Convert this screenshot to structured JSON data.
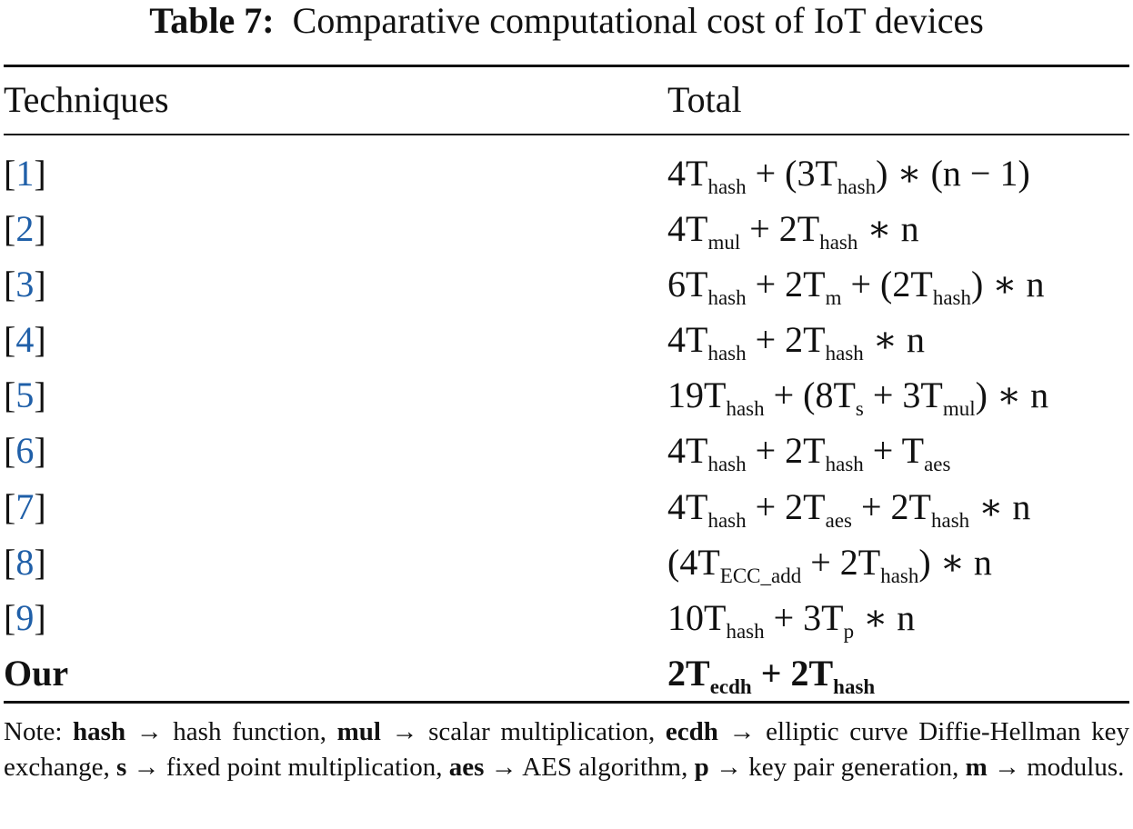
{
  "caption": {
    "label": "Table 7:",
    "text": "Comparative computational cost of IoT devices"
  },
  "table": {
    "headers": {
      "techniques": "Techniques",
      "total": "Total"
    },
    "rows": [
      {
        "technique": "[1]",
        "cite": "1",
        "formula": [
          [
            "4T",
            ""
          ],
          [
            "hash",
            "sub"
          ],
          [
            " + (3T",
            ""
          ],
          [
            "hash",
            "sub"
          ],
          [
            ") ∗ (n − 1)",
            ""
          ]
        ]
      },
      {
        "technique": "[2]",
        "cite": "2",
        "formula": [
          [
            "4T",
            ""
          ],
          [
            "mul",
            "sub"
          ],
          [
            " + 2T",
            ""
          ],
          [
            "hash",
            "sub"
          ],
          [
            " ∗ n",
            ""
          ]
        ]
      },
      {
        "technique": "[3]",
        "cite": "3",
        "formula": [
          [
            "6T",
            ""
          ],
          [
            "hash",
            "sub"
          ],
          [
            " + 2T",
            ""
          ],
          [
            "m",
            "sub"
          ],
          [
            " + (2T",
            ""
          ],
          [
            "hash",
            "sub"
          ],
          [
            ") ∗ n",
            ""
          ]
        ]
      },
      {
        "technique": "[4]",
        "cite": "4",
        "formula": [
          [
            "4T",
            ""
          ],
          [
            "hash",
            "sub"
          ],
          [
            " + 2T",
            ""
          ],
          [
            "hash",
            "sub"
          ],
          [
            " ∗ n",
            ""
          ]
        ]
      },
      {
        "technique": "[5]",
        "cite": "5",
        "formula": [
          [
            "19T",
            ""
          ],
          [
            "hash",
            "sub"
          ],
          [
            " + (8T",
            ""
          ],
          [
            "s",
            "sub"
          ],
          [
            " + 3T",
            ""
          ],
          [
            "mul",
            "sub"
          ],
          [
            ") ∗ n",
            ""
          ]
        ]
      },
      {
        "technique": "[6]",
        "cite": "6",
        "formula": [
          [
            "4T",
            ""
          ],
          [
            "hash",
            "sub"
          ],
          [
            " + 2T",
            ""
          ],
          [
            "hash",
            "sub"
          ],
          [
            " + T",
            ""
          ],
          [
            "aes",
            "sub"
          ]
        ]
      },
      {
        "technique": "[7]",
        "cite": "7",
        "formula": [
          [
            "4T",
            ""
          ],
          [
            "hash",
            "sub"
          ],
          [
            " + 2T",
            ""
          ],
          [
            "aes",
            "sub"
          ],
          [
            " + 2T",
            ""
          ],
          [
            "hash",
            "sub"
          ],
          [
            " ∗ n",
            ""
          ]
        ]
      },
      {
        "technique": "[8]",
        "cite": "8",
        "formula": [
          [
            "(4T",
            ""
          ],
          [
            "ECC_add",
            "sub"
          ],
          [
            " + 2T",
            ""
          ],
          [
            "hash",
            "sub"
          ],
          [
            ") ∗ n",
            ""
          ]
        ]
      },
      {
        "technique": "[9]",
        "cite": "9",
        "formula": [
          [
            "10T",
            ""
          ],
          [
            "hash",
            "sub"
          ],
          [
            " + 3T",
            ""
          ],
          [
            "p",
            "sub"
          ],
          [
            " ∗ n",
            ""
          ]
        ]
      },
      {
        "technique": "Our",
        "cite": "",
        "bold": true,
        "formula": [
          [
            "2T",
            ""
          ],
          [
            "ecdh",
            "sub"
          ],
          [
            " + 2T",
            ""
          ],
          [
            "hash",
            "sub"
          ]
        ]
      }
    ]
  },
  "note": {
    "prefix": "Note: ",
    "items": [
      {
        "term": "hash",
        "desc": " → hash function, "
      },
      {
        "term": "mul",
        "desc": " → scalar multiplication, "
      },
      {
        "term": "ecdh",
        "desc": " → elliptic curve Diffie-Hellman key exchange, "
      },
      {
        "term": "s",
        "desc": " → fixed point multiplication, "
      },
      {
        "term": "aes",
        "desc": " → AES algorithm, "
      },
      {
        "term": "p",
        "desc": " → key pair generation, "
      },
      {
        "term": "m",
        "desc": " → modulus."
      }
    ]
  },
  "colors": {
    "citation_link": "#1f5fa8",
    "text": "#111111"
  }
}
